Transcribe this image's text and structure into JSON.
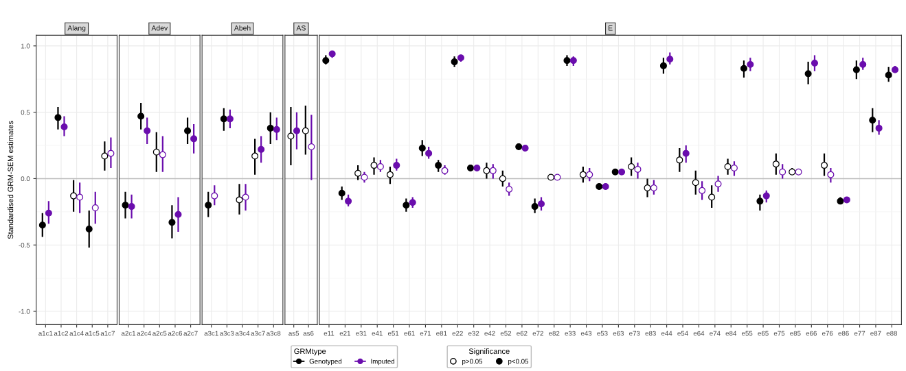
{
  "chart_data": [
    {
      "type": "scatter",
      "title": "Alang",
      "ylabel": "Standardised GRM-SEM estimates",
      "categories": [
        "a1c1",
        "a1c2",
        "a1c4",
        "a1c5",
        "a1c7"
      ],
      "ylim": [
        -1.1,
        1.08
      ],
      "yticks": [
        {
          "value": -1,
          "label": "-1.0"
        },
        {
          "value": -0.5,
          "label": "-0.5"
        },
        {
          "value": 0,
          "label": "0.0"
        },
        {
          "value": 0.5,
          "label": "0.5"
        },
        {
          "value": 1,
          "label": "1.0"
        }
      ],
      "grid": true,
      "legend": "bottom",
      "legend_title": "GRMtype",
      "annotations": [
        "Significance",
        "p>0.05",
        "p<0.05"
      ],
      "marker": "circle",
      "ref_lines": [
        {
          "axis": "y",
          "value": 0,
          "color": "#bdbdbd"
        }
      ],
      "series": [
        {
          "name": "Genotyped",
          "color": "#000000",
          "values": [
            -0.35,
            0.46,
            -0.13,
            -0.38,
            0.17
          ],
          "errors": [
            [
              -0.44,
              -0.26
            ],
            [
              0.37,
              0.54
            ],
            [
              -0.25,
              -0.01
            ],
            [
              -0.52,
              -0.24
            ],
            [
              0.06,
              0.28
            ]
          ],
          "colors": [
            "#000000",
            "#000000",
            "#ffffff",
            "#000000",
            "#ffffff"
          ]
        },
        {
          "name": "Imputed",
          "color": "#6a0dad",
          "values": [
            -0.26,
            0.39,
            -0.14,
            -0.22,
            0.19
          ],
          "errors": [
            [
              -0.34,
              -0.17
            ],
            [
              0.32,
              0.47
            ],
            [
              -0.26,
              -0.03
            ],
            [
              -0.34,
              -0.1
            ],
            [
              0.08,
              0.31
            ]
          ],
          "colors": [
            "#6a0dad",
            "#6a0dad",
            "#ffffff",
            "#ffffff",
            "#ffffff"
          ]
        }
      ]
    },
    {
      "type": "scatter",
      "title": "Adev",
      "categories": [
        "a2c1",
        "a2c4",
        "a2c5",
        "a2c6",
        "a2c7"
      ],
      "ylim": [
        -1.1,
        1.08
      ],
      "yticks": [
        {
          "value": -1,
          "label": null
        },
        {
          "value": -0.5,
          "label": null
        },
        {
          "value": 0,
          "label": null
        },
        {
          "value": 0.5,
          "label": null
        },
        {
          "value": 1,
          "label": null
        }
      ],
      "tick_labels": "x",
      "grid": true,
      "marker": "circle",
      "ref_lines": [
        {
          "axis": "y",
          "value": 0,
          "color": "#bdbdbd"
        }
      ],
      "series": [
        {
          "color": "#000000",
          "values": [
            -0.2,
            0.47,
            0.2,
            -0.33,
            0.36
          ],
          "errors": [
            [
              -0.3,
              -0.1
            ],
            [
              0.37,
              0.57
            ],
            [
              0.05,
              0.35
            ],
            [
              -0.45,
              -0.2
            ],
            [
              0.26,
              0.46
            ]
          ],
          "colors": [
            "#000000",
            "#000000",
            "#ffffff",
            "#000000",
            "#000000"
          ]
        },
        {
          "color": "#6a0dad",
          "values": [
            -0.21,
            0.36,
            0.18,
            -0.27,
            0.3
          ],
          "errors": [
            [
              -0.3,
              -0.12
            ],
            [
              0.26,
              0.46
            ],
            [
              0.05,
              0.32
            ],
            [
              -0.4,
              -0.14
            ],
            [
              0.19,
              0.41
            ]
          ],
          "colors": [
            "#6a0dad",
            "#6a0dad",
            "#ffffff",
            "#6a0dad",
            "#6a0dad"
          ]
        }
      ]
    },
    {
      "type": "scatter",
      "title": "Abeh",
      "categories": [
        "a3c1",
        "a3c3",
        "a3c4",
        "a3c7",
        "a3c8"
      ],
      "ylim": [
        -1.1,
        1.08
      ],
      "yticks": [
        {
          "value": -1,
          "label": null
        },
        {
          "value": -0.5,
          "label": null
        },
        {
          "value": 0,
          "label": null
        },
        {
          "value": 0.5,
          "label": null
        },
        {
          "value": 1,
          "label": null
        }
      ],
      "tick_labels": "x",
      "grid": true,
      "marker": "circle",
      "ref_lines": [
        {
          "axis": "y",
          "value": 0,
          "color": "#bdbdbd"
        }
      ],
      "series": [
        {
          "color": "#000000",
          "values": [
            -0.2,
            0.45,
            -0.16,
            0.17,
            0.38
          ],
          "errors": [
            [
              -0.29,
              -0.1
            ],
            [
              0.36,
              0.53
            ],
            [
              -0.27,
              -0.04
            ],
            [
              0.03,
              0.3
            ],
            [
              0.26,
              0.5
            ]
          ],
          "colors": [
            "#000000",
            "#000000",
            "#ffffff",
            "#ffffff",
            "#000000"
          ]
        },
        {
          "color": "#6a0dad",
          "values": [
            -0.13,
            0.45,
            -0.14,
            0.22,
            0.37
          ],
          "errors": [
            [
              -0.2,
              -0.05
            ],
            [
              0.38,
              0.52
            ],
            [
              -0.24,
              -0.04
            ],
            [
              0.12,
              0.32
            ],
            [
              0.29,
              0.46
            ]
          ],
          "colors": [
            "#ffffff",
            "#6a0dad",
            "#ffffff",
            "#6a0dad",
            "#6a0dad"
          ]
        }
      ]
    },
    {
      "type": "scatter",
      "title": "AS",
      "categories": [
        "as5",
        "as6"
      ],
      "ylim": [
        -1.1,
        1.08
      ],
      "yticks": [
        {
          "value": -1,
          "label": null
        },
        {
          "value": -0.5,
          "label": null
        },
        {
          "value": 0,
          "label": null
        },
        {
          "value": 0.5,
          "label": null
        },
        {
          "value": 1,
          "label": null
        }
      ],
      "tick_labels": "x",
      "grid": true,
      "marker": "circle",
      "ref_lines": [
        {
          "axis": "y",
          "value": 0,
          "color": "#bdbdbd"
        }
      ],
      "series": [
        {
          "color": "#000000",
          "values": [
            0.32,
            0.36
          ],
          "errors": [
            [
              0.1,
              0.54
            ],
            [
              0.18,
              0.55
            ]
          ],
          "colors": [
            "#ffffff",
            "#ffffff"
          ]
        },
        {
          "color": "#6a0dad",
          "values": [
            0.36,
            0.24
          ],
          "errors": [
            [
              0.22,
              0.5
            ],
            [
              -0.01,
              0.48
            ]
          ],
          "colors": [
            "#6a0dad",
            "#ffffff"
          ]
        }
      ]
    },
    {
      "type": "scatter",
      "title": "E",
      "categories": [
        "e11",
        "e21",
        "e31",
        "e41",
        "e51",
        "e61",
        "e71",
        "e81",
        "e22",
        "e32",
        "e42",
        "e52",
        "e62",
        "e72",
        "e82",
        "e33",
        "e43",
        "e53",
        "e63",
        "e73",
        "e83",
        "e44",
        "e54",
        "e64",
        "e74",
        "e84",
        "e55",
        "e65",
        "e75",
        "e85",
        "e66",
        "e76",
        "e86",
        "e77",
        "e87",
        "e88"
      ],
      "ylim": [
        -1.1,
        1.08
      ],
      "yticks": [
        {
          "value": -1,
          "label": null
        },
        {
          "value": -0.5,
          "label": null
        },
        {
          "value": 0,
          "label": null
        },
        {
          "value": 0.5,
          "label": null
        },
        {
          "value": 1,
          "label": null
        }
      ],
      "tick_labels": "x",
      "grid": true,
      "marker": "circle",
      "ref_lines": [
        {
          "axis": "y",
          "value": 0,
          "color": "#bdbdbd"
        }
      ],
      "series": [
        {
          "color": "#000000",
          "values": [
            0.89,
            -0.11,
            0.04,
            0.1,
            0.03,
            -0.2,
            0.23,
            0.1,
            0.88,
            0.08,
            0.06,
            0.0,
            0.24,
            -0.21,
            0.01,
            0.89,
            0.03,
            -0.06,
            0.05,
            0.09,
            -0.07,
            0.85,
            0.14,
            -0.03,
            -0.14,
            0.09,
            0.83,
            -0.17,
            0.11,
            0.05,
            0.79,
            0.1,
            -0.17,
            0.82,
            0.44,
            0.78
          ],
          "errors": [
            [
              0.86,
              0.93
            ],
            [
              -0.16,
              -0.06
            ],
            [
              -0.01,
              0.1
            ],
            [
              0.03,
              0.16
            ],
            [
              -0.04,
              0.09
            ],
            [
              -0.25,
              -0.15
            ],
            [
              0.17,
              0.29
            ],
            [
              0.05,
              0.14
            ],
            [
              0.84,
              0.92
            ],
            [
              0.07,
              0.09
            ],
            [
              0.0,
              0.12
            ],
            [
              -0.06,
              0.06
            ],
            [
              0.23,
              0.26
            ],
            [
              -0.26,
              -0.15
            ],
            [
              0.0,
              0.02
            ],
            [
              0.85,
              0.93
            ],
            [
              -0.03,
              0.09
            ],
            [
              -0.07,
              -0.06
            ],
            [
              0.04,
              0.06
            ],
            [
              0.02,
              0.16
            ],
            [
              -0.14,
              0.0
            ],
            [
              0.79,
              0.91
            ],
            [
              0.05,
              0.23
            ],
            [
              -0.12,
              0.06
            ],
            [
              -0.22,
              -0.05
            ],
            [
              0.03,
              0.15
            ],
            [
              0.76,
              0.89
            ],
            [
              -0.24,
              -0.12
            ],
            [
              0.03,
              0.19
            ],
            [
              0.03,
              0.08
            ],
            [
              0.71,
              0.88
            ],
            [
              0.02,
              0.19
            ],
            [
              -0.19,
              -0.14
            ],
            [
              0.75,
              0.89
            ],
            [
              0.35,
              0.53
            ],
            [
              0.73,
              0.84
            ]
          ],
          "colors": [
            "#000000",
            "#000000",
            "#ffffff",
            "#ffffff",
            "#ffffff",
            "#000000",
            "#000000",
            "#000000",
            "#000000",
            "#000000",
            "#ffffff",
            "#ffffff",
            "#000000",
            "#000000",
            "#ffffff",
            "#000000",
            "#ffffff",
            "#000000",
            "#000000",
            "#ffffff",
            "#ffffff",
            "#000000",
            "#ffffff",
            "#ffffff",
            "#ffffff",
            "#ffffff",
            "#000000",
            "#000000",
            "#ffffff",
            "#ffffff",
            "#000000",
            "#ffffff",
            "#000000",
            "#000000",
            "#000000",
            "#000000"
          ]
        },
        {
          "color": "#6a0dad",
          "values": [
            0.94,
            -0.17,
            0.01,
            0.09,
            0.1,
            -0.18,
            0.19,
            0.06,
            0.91,
            0.08,
            0.06,
            -0.08,
            0.23,
            -0.19,
            0.01,
            0.89,
            0.03,
            -0.06,
            0.05,
            0.07,
            -0.07,
            0.9,
            0.19,
            -0.09,
            -0.04,
            0.08,
            0.86,
            -0.13,
            0.05,
            0.05,
            0.87,
            0.03,
            -0.16,
            0.86,
            0.38,
            0.82
          ],
          "errors": [
            [
              0.91,
              0.96
            ],
            [
              -0.21,
              -0.12
            ],
            [
              -0.03,
              0.05
            ],
            [
              0.05,
              0.14
            ],
            [
              0.06,
              0.15
            ],
            [
              -0.22,
              -0.14
            ],
            [
              0.15,
              0.24
            ],
            [
              0.03,
              0.1
            ],
            [
              0.88,
              0.93
            ],
            [
              0.07,
              0.08
            ],
            [
              0.0,
              0.11
            ],
            [
              -0.13,
              -0.03
            ],
            [
              0.22,
              0.24
            ],
            [
              -0.24,
              -0.14
            ],
            [
              0.0,
              0.02
            ],
            [
              0.85,
              0.92
            ],
            [
              -0.02,
              0.08
            ],
            [
              -0.07,
              -0.05
            ],
            [
              0.04,
              0.06
            ],
            [
              0.0,
              0.12
            ],
            [
              -0.12,
              -0.01
            ],
            [
              0.86,
              0.95
            ],
            [
              0.12,
              0.25
            ],
            [
              -0.16,
              -0.02
            ],
            [
              -0.1,
              0.02
            ],
            [
              0.02,
              0.13
            ],
            [
              0.81,
              0.91
            ],
            [
              -0.18,
              -0.09
            ],
            [
              0.0,
              0.11
            ],
            [
              0.03,
              0.06
            ],
            [
              0.81,
              0.93
            ],
            [
              -0.03,
              0.08
            ],
            [
              -0.17,
              -0.14
            ],
            [
              0.82,
              0.91
            ],
            [
              0.33,
              0.44
            ],
            [
              0.8,
              0.85
            ]
          ],
          "colors": [
            "#6a0dad",
            "#6a0dad",
            "#ffffff",
            "#ffffff",
            "#6a0dad",
            "#6a0dad",
            "#6a0dad",
            "#ffffff",
            "#6a0dad",
            "#6a0dad",
            "#ffffff",
            "#ffffff",
            "#6a0dad",
            "#6a0dad",
            "#ffffff",
            "#6a0dad",
            "#ffffff",
            "#6a0dad",
            "#6a0dad",
            "#ffffff",
            "#ffffff",
            "#6a0dad",
            "#6a0dad",
            "#ffffff",
            "#ffffff",
            "#ffffff",
            "#6a0dad",
            "#6a0dad",
            "#ffffff",
            "#ffffff",
            "#6a0dad",
            "#ffffff",
            "#6a0dad",
            "#6a0dad",
            "#6a0dad",
            "#6a0dad"
          ]
        }
      ]
    }
  ]
}
